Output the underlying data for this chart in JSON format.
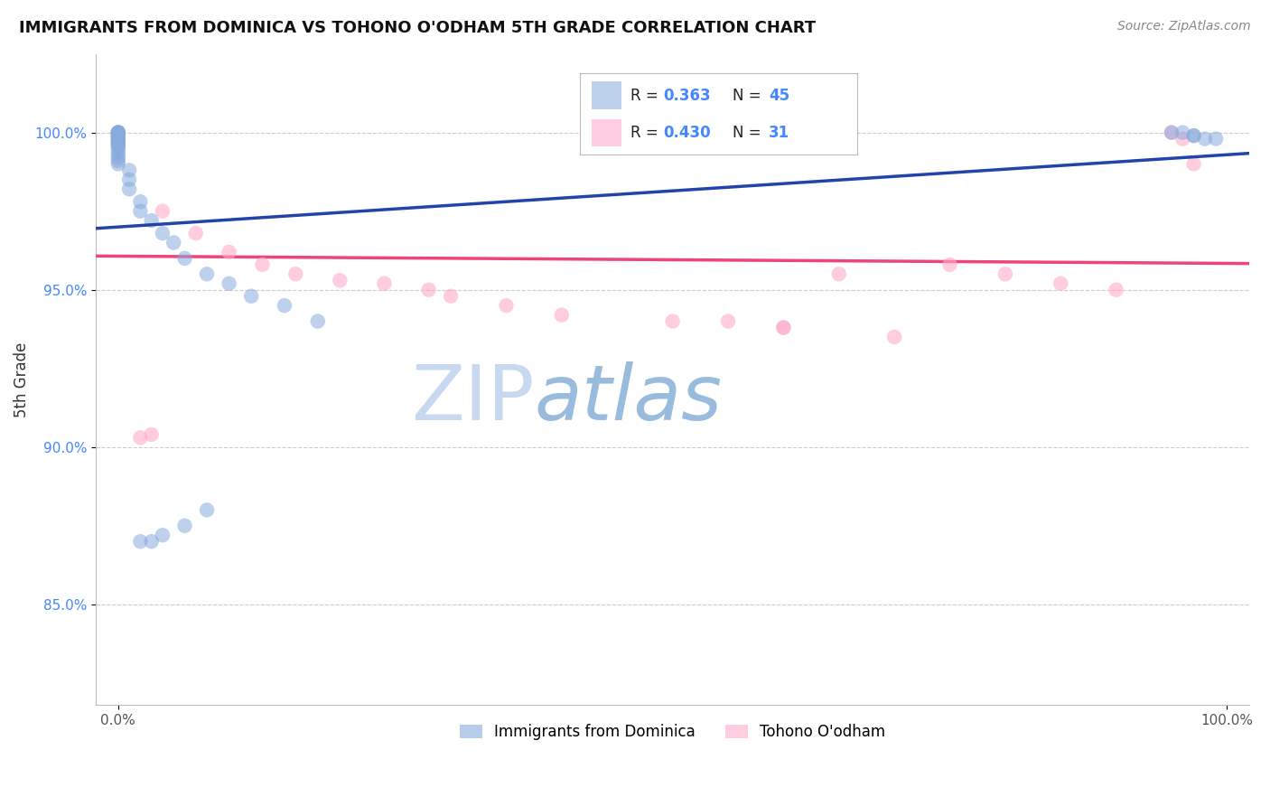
{
  "title": "IMMIGRANTS FROM DOMINICA VS TOHONO O'ODHAM 5TH GRADE CORRELATION CHART",
  "source_text": "Source: ZipAtlas.com",
  "ylabel": "5th Grade",
  "xlim": [
    -0.02,
    1.02
  ],
  "ylim": [
    0.818,
    1.025
  ],
  "xtick_positions": [
    0.0,
    1.0
  ],
  "xtick_labels": [
    "0.0%",
    "100.0%"
  ],
  "ytick_values": [
    0.85,
    0.9,
    0.95,
    1.0
  ],
  "ytick_labels": [
    "85.0%",
    "90.0%",
    "95.0%",
    "100.0%"
  ],
  "legend_1_label": "Immigrants from Dominica",
  "legend_2_label": "Tohono O'odham",
  "r1_label": "0.363",
  "n1_label": "45",
  "r2_label": "0.430",
  "n2_label": "31",
  "blue_scatter_color": "#88AADD",
  "pink_scatter_color": "#FFAACC",
  "blue_line_color": "#2244AA",
  "pink_line_color": "#EE4477",
  "grid_color": "#CCCCCC",
  "watermark_zip": "ZIP",
  "watermark_atlas": "atlas",
  "watermark_color_zip": "#C8D8F0",
  "watermark_color_atlas": "#99BBDD",
  "blue_x": [
    0.0,
    0.0,
    0.0,
    0.0,
    0.0,
    0.0,
    0.0,
    0.0,
    0.0,
    0.0,
    0.0,
    0.0,
    0.0,
    0.0,
    0.0,
    0.0,
    0.0,
    0.0,
    0.0,
    0.0,
    0.01,
    0.01,
    0.01,
    0.02,
    0.02,
    0.03,
    0.04,
    0.05,
    0.06,
    0.08,
    0.1,
    0.12,
    0.15,
    0.18,
    0.02,
    0.03,
    0.04,
    0.06,
    0.08,
    0.95,
    0.96,
    0.97,
    0.97,
    0.98,
    0.99
  ],
  "blue_y": [
    1.0,
    1.0,
    1.0,
    1.0,
    1.0,
    0.999,
    0.999,
    0.999,
    0.998,
    0.998,
    0.997,
    0.997,
    0.996,
    0.996,
    0.995,
    0.994,
    0.993,
    0.992,
    0.991,
    0.99,
    0.988,
    0.985,
    0.982,
    0.978,
    0.975,
    0.972,
    0.968,
    0.965,
    0.96,
    0.955,
    0.952,
    0.948,
    0.945,
    0.94,
    0.87,
    0.87,
    0.872,
    0.875,
    0.88,
    1.0,
    1.0,
    0.999,
    0.999,
    0.998,
    0.998
  ],
  "pink_x": [
    0.0,
    0.0,
    0.0,
    0.0,
    0.0,
    0.04,
    0.07,
    0.1,
    0.13,
    0.16,
    0.2,
    0.24,
    0.28,
    0.3,
    0.35,
    0.4,
    0.5,
    0.6,
    0.7,
    0.75,
    0.8,
    0.85,
    0.9,
    0.95,
    0.02,
    0.03,
    0.55,
    0.6,
    0.65,
    0.96,
    0.97
  ],
  "pink_y": [
    1.0,
    0.999,
    0.998,
    0.997,
    0.996,
    0.975,
    0.968,
    0.962,
    0.958,
    0.955,
    0.953,
    0.952,
    0.95,
    0.948,
    0.945,
    0.942,
    0.94,
    0.938,
    0.935,
    0.958,
    0.955,
    0.952,
    0.95,
    1.0,
    0.903,
    0.904,
    0.94,
    0.938,
    0.955,
    0.998,
    0.99
  ]
}
